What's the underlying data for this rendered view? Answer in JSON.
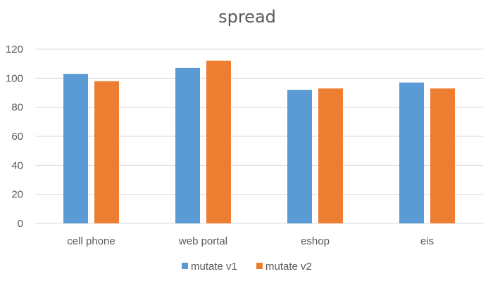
{
  "chart_data": {
    "type": "bar",
    "title": "spread",
    "categories": [
      "cell phone",
      "web portal",
      "eshop",
      "eis"
    ],
    "series": [
      {
        "name": "mutate v1",
        "color": "#5b9bd5",
        "values": [
          103,
          107,
          92,
          97
        ]
      },
      {
        "name": "mutate v2",
        "color": "#ed7d31",
        "values": [
          98,
          112,
          93,
          93
        ]
      }
    ],
    "y_ticks": [
      0,
      20,
      40,
      60,
      80,
      100,
      120
    ],
    "ylim": [
      0,
      120
    ],
    "xlabel": "",
    "ylabel": "",
    "grid": true,
    "legend_position": "bottom"
  }
}
